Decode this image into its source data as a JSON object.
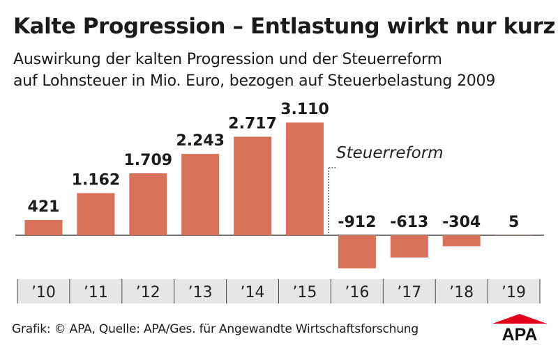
{
  "title": "Kalte Progression – Entlastung wirkt nur kurz",
  "subtitle": [
    "Auswirkung der kalten Progression und der Steuerreform",
    "auf Lohnsteuer in Mio. Euro, bezogen auf Steuerbelastung 2009"
  ],
  "source": "Grafik: © APA, Quelle: APA/Ges. für Angewandte Wirtschaftsforschung",
  "logo": "APA",
  "colors": {
    "bar": "#d9705a",
    "logo_red": "#e3001b",
    "axis_band": "#e6e6e6"
  },
  "chart_data": {
    "type": "bar",
    "categories": [
      "’10",
      "’11",
      "’12",
      "’13",
      "’14",
      "’15",
      "’16",
      "’17",
      "’18",
      "’19"
    ],
    "values": [
      421,
      1162,
      1709,
      2243,
      2717,
      3110,
      -912,
      -613,
      -304,
      5
    ],
    "value_labels": [
      "421",
      "1.162",
      "1.709",
      "2.243",
      "2.717",
      "3.110",
      "-912",
      "-613",
      "-304",
      "5"
    ],
    "annotation": "Steuerreform",
    "grid": false,
    "legend": "none"
  }
}
